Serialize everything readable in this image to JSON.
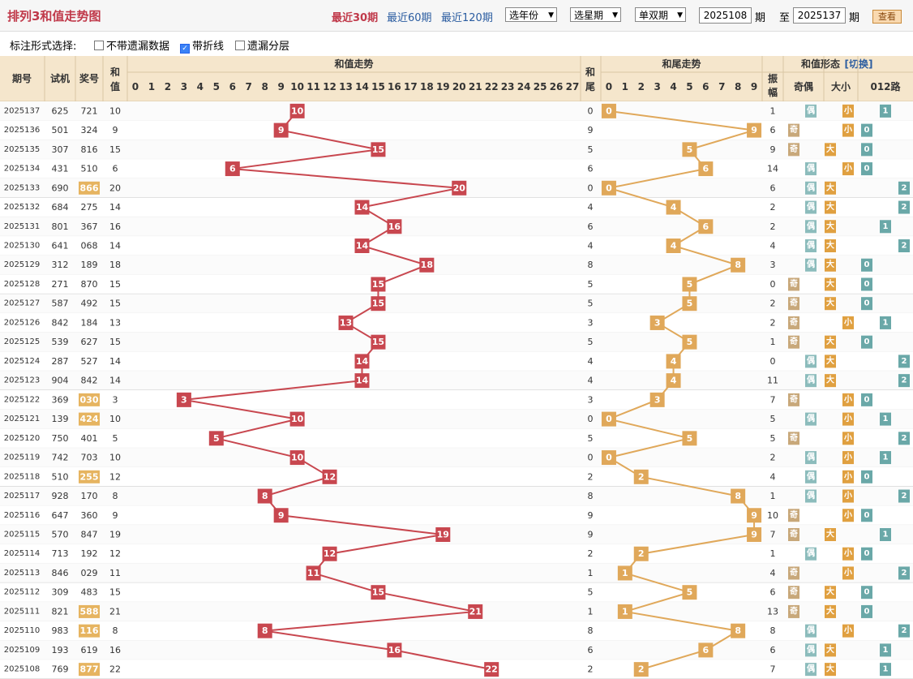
{
  "header": {
    "title": "排列3和值走势图",
    "links": [
      "最近30期",
      "最近60期",
      "最近120期"
    ],
    "selects": [
      "选年份",
      "选星期",
      "单双期"
    ],
    "from_value": "2025108",
    "to_value": "2025137",
    "period_label": "期",
    "to_label": "至",
    "view_button": "查看"
  },
  "options": {
    "label": "标注形式选择:",
    "items": [
      {
        "label": "不带遗漏数据",
        "checked": false
      },
      {
        "label": "带折线",
        "checked": true
      },
      {
        "label": "遗漏分层",
        "checked": false
      }
    ]
  },
  "columns": {
    "issue": "期号",
    "trial": "试机",
    "prize": "奖号",
    "sum": "和值",
    "sum_trend": "和值走势",
    "tail": "和尾",
    "tail_trend": "和尾走势",
    "form": "和值形态",
    "switch": "[切换]",
    "amplitude": "振幅",
    "odd_even": "奇偶",
    "big_small": "大小",
    "route": "012路",
    "sum_values": [
      "0",
      "1",
      "2",
      "3",
      "4",
      "5",
      "6",
      "7",
      "8",
      "9",
      "10",
      "11",
      "12",
      "13",
      "14",
      "15",
      "16",
      "17",
      "18",
      "19",
      "20",
      "21",
      "22",
      "23",
      "24",
      "25",
      "26",
      "27"
    ],
    "tail_values": [
      "0",
      "1",
      "2",
      "3",
      "4",
      "5",
      "6",
      "7",
      "8",
      "9"
    ],
    "route_values": [
      "0",
      "1",
      "2"
    ]
  },
  "labels": {
    "odd": "奇",
    "even": "偶",
    "big": "大",
    "small": "小"
  },
  "rows": [
    {
      "issue": "2025137",
      "trial": "625",
      "prize": "721",
      "prize_hl": false,
      "sum": "10",
      "amp": "1"
    },
    {
      "issue": "2025136",
      "trial": "501",
      "prize": "324",
      "prize_hl": false,
      "sum": "9",
      "amp": "6"
    },
    {
      "issue": "2025135",
      "trial": "307",
      "prize": "816",
      "prize_hl": false,
      "sum": "15",
      "amp": "9"
    },
    {
      "issue": "2025134",
      "trial": "431",
      "prize": "510",
      "prize_hl": false,
      "sum": "6",
      "amp": "14"
    },
    {
      "issue": "2025133",
      "trial": "690",
      "prize": "866",
      "prize_hl": true,
      "sum": "20",
      "amp": "6"
    },
    {
      "issue": "2025132",
      "trial": "684",
      "prize": "275",
      "prize_hl": false,
      "sum": "14",
      "amp": "2"
    },
    {
      "issue": "2025131",
      "trial": "801",
      "prize": "367",
      "prize_hl": false,
      "sum": "16",
      "amp": "2"
    },
    {
      "issue": "2025130",
      "trial": "641",
      "prize": "068",
      "prize_hl": false,
      "sum": "14",
      "amp": "4"
    },
    {
      "issue": "2025129",
      "trial": "312",
      "prize": "189",
      "prize_hl": false,
      "sum": "18",
      "amp": "3"
    },
    {
      "issue": "2025128",
      "trial": "271",
      "prize": "870",
      "prize_hl": false,
      "sum": "15",
      "amp": "0"
    },
    {
      "issue": "2025127",
      "trial": "587",
      "prize": "492",
      "prize_hl": false,
      "sum": "15",
      "amp": "2"
    },
    {
      "issue": "2025126",
      "trial": "842",
      "prize": "184",
      "prize_hl": false,
      "sum": "13",
      "amp": "2"
    },
    {
      "issue": "2025125",
      "trial": "539",
      "prize": "627",
      "prize_hl": false,
      "sum": "15",
      "amp": "1"
    },
    {
      "issue": "2025124",
      "trial": "287",
      "prize": "527",
      "prize_hl": false,
      "sum": "14",
      "amp": "0"
    },
    {
      "issue": "2025123",
      "trial": "904",
      "prize": "842",
      "prize_hl": false,
      "sum": "14",
      "amp": "11"
    },
    {
      "issue": "2025122",
      "trial": "369",
      "prize": "030",
      "prize_hl": true,
      "sum": "3",
      "amp": "7"
    },
    {
      "issue": "2025121",
      "trial": "139",
      "prize": "424",
      "prize_hl": true,
      "sum": "10",
      "amp": "5"
    },
    {
      "issue": "2025120",
      "trial": "750",
      "prize": "401",
      "prize_hl": false,
      "sum": "5",
      "amp": "5"
    },
    {
      "issue": "2025119",
      "trial": "742",
      "prize": "703",
      "prize_hl": false,
      "sum": "10",
      "amp": "2"
    },
    {
      "issue": "2025118",
      "trial": "510",
      "prize": "255",
      "prize_hl": true,
      "sum": "12",
      "amp": "4"
    },
    {
      "issue": "2025117",
      "trial": "928",
      "prize": "170",
      "prize_hl": false,
      "sum": "8",
      "amp": "1"
    },
    {
      "issue": "2025116",
      "trial": "647",
      "prize": "360",
      "prize_hl": false,
      "sum": "9",
      "amp": "10"
    },
    {
      "issue": "2025115",
      "trial": "570",
      "prize": "847",
      "prize_hl": false,
      "sum": "19",
      "amp": "7"
    },
    {
      "issue": "2025114",
      "trial": "713",
      "prize": "192",
      "prize_hl": false,
      "sum": "12",
      "amp": "1"
    },
    {
      "issue": "2025113",
      "trial": "846",
      "prize": "029",
      "prize_hl": false,
      "sum": "11",
      "amp": "4"
    },
    {
      "issue": "2025112",
      "trial": "309",
      "prize": "483",
      "prize_hl": false,
      "sum": "15",
      "amp": "6"
    },
    {
      "issue": "2025111",
      "trial": "821",
      "prize": "588",
      "prize_hl": true,
      "sum": "21",
      "amp": "13"
    },
    {
      "issue": "2025110",
      "trial": "983",
      "prize": "116",
      "prize_hl": true,
      "sum": "8",
      "amp": "8"
    },
    {
      "issue": "2025109",
      "trial": "193",
      "prize": "619",
      "prize_hl": false,
      "sum": "16",
      "amp": "6"
    },
    {
      "issue": "2025108",
      "trial": "769",
      "prize": "877",
      "prize_hl": true,
      "sum": "22",
      "amp": "7"
    }
  ],
  "colors": {
    "sum_mark": "#c8474f",
    "tail_mark": "#e0a85a",
    "odd": "#c8a87a",
    "even": "#8cbcbc",
    "big": "#e0a040",
    "small": "#e0a040",
    "route_on": "#6aa8a8",
    "header_bg": "#f5e6cc",
    "prize_hl": "#e6b460"
  }
}
